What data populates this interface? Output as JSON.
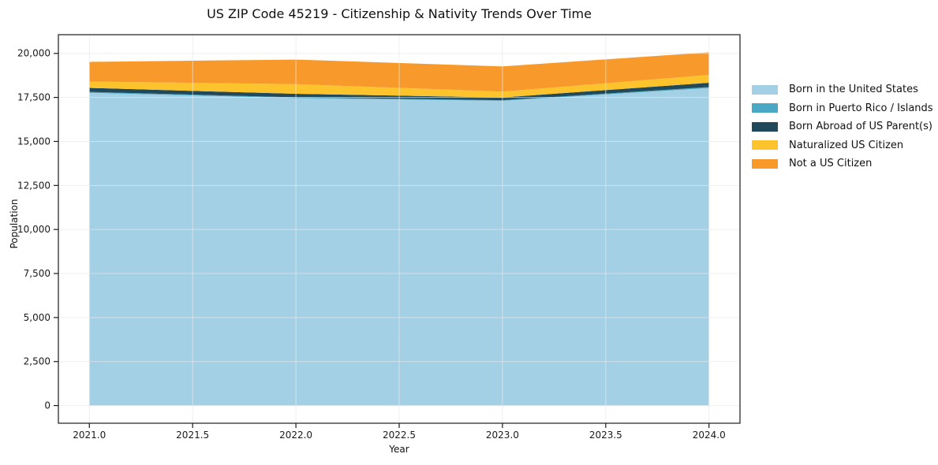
{
  "title": "US ZIP Code 45219 - Citizenship & Nativity Trends Over Time",
  "axes": {
    "x_label": "Year",
    "y_label": "Population",
    "x_tick_values": [
      2021.0,
      2021.5,
      2022.0,
      2022.5,
      2023.0,
      2023.5,
      2024.0
    ],
    "x_tick_labels": [
      "2021.0",
      "2021.5",
      "2022.0",
      "2022.5",
      "2023.0",
      "2023.5",
      "2024.0"
    ],
    "y_tick_values": [
      0,
      2500,
      5000,
      7500,
      10000,
      12500,
      15000,
      17500,
      20000
    ],
    "y_tick_labels": [
      "0",
      "2,500",
      "5,000",
      "7,500",
      "10,000",
      "12,500",
      "15,000",
      "17,500",
      "20,000"
    ]
  },
  "colors": {
    "spine": "#1a1a1a",
    "grid": "#e8e8e8",
    "tick_label": "#1a1a1a"
  },
  "chart_data": {
    "type": "area",
    "stacked": true,
    "title": "US ZIP Code 45219 - Citizenship & Nativity Trends Over Time",
    "xlabel": "Year",
    "ylabel": "Population",
    "x": [
      2021,
      2022,
      2023,
      2024
    ],
    "series": [
      {
        "name": "Born in the United States",
        "color": "#a4d0e6",
        "values": [
          17760,
          17460,
          17310,
          18030
        ]
      },
      {
        "name": "Born in Puerto Rico / Islands",
        "color": "#4aa8c4",
        "values": [
          50,
          45,
          30,
          60
        ]
      },
      {
        "name": "Born Abroad of US Parent(s)",
        "color": "#21495c",
        "values": [
          230,
          200,
          160,
          245
        ]
      },
      {
        "name": "Naturalized US Citizen",
        "color": "#fcc32d",
        "values": [
          360,
          550,
          330,
          445
        ]
      },
      {
        "name": "Not a US Citizen",
        "color": "#f8992b",
        "values": [
          1120,
          1395,
          1430,
          1280
        ]
      }
    ],
    "totals_by_year": [
      19520,
      19650,
      19260,
      20060
    ],
    "xlim": [
      2020.85,
      2024.15
    ],
    "ylim": [
      -1003,
      21063
    ],
    "grid": true,
    "legend_position": "center-right"
  }
}
